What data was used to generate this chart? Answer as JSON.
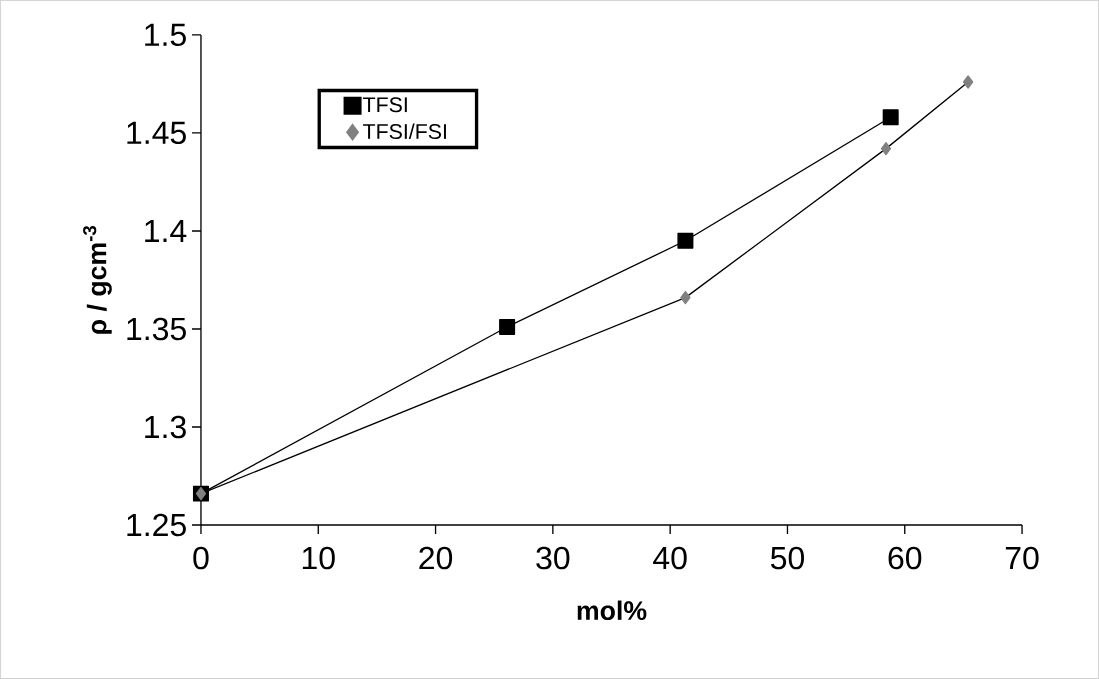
{
  "chart_data": {
    "type": "line",
    "xlabel": "mol%",
    "ylabel": "ρ  / gcm$^{-3}$",
    "xlim": [
      0,
      70
    ],
    "xticks": [
      0,
      10,
      20,
      30,
      40,
      50,
      60,
      70
    ],
    "ylim": [
      1.25,
      1.5
    ],
    "yticks": [
      1.25,
      1.3,
      1.35,
      1.4,
      1.45,
      1.5
    ],
    "grid": false,
    "legend": "top left",
    "line_style": "solid",
    "series": [
      {
        "name": "TFSI",
        "color": "#000000",
        "marker": "square",
        "x": [
          0,
          26.1,
          41.3,
          58.8
        ],
        "values": [
          1.266,
          1.351,
          1.395,
          1.458
        ]
      },
      {
        "name": "TFSI/FSI",
        "color": "#808080",
        "marker": "diamond",
        "x": [
          0,
          41.3,
          58.4,
          65.4
        ],
        "values": [
          1.266,
          1.366,
          1.442,
          1.476
        ]
      }
    ]
  }
}
